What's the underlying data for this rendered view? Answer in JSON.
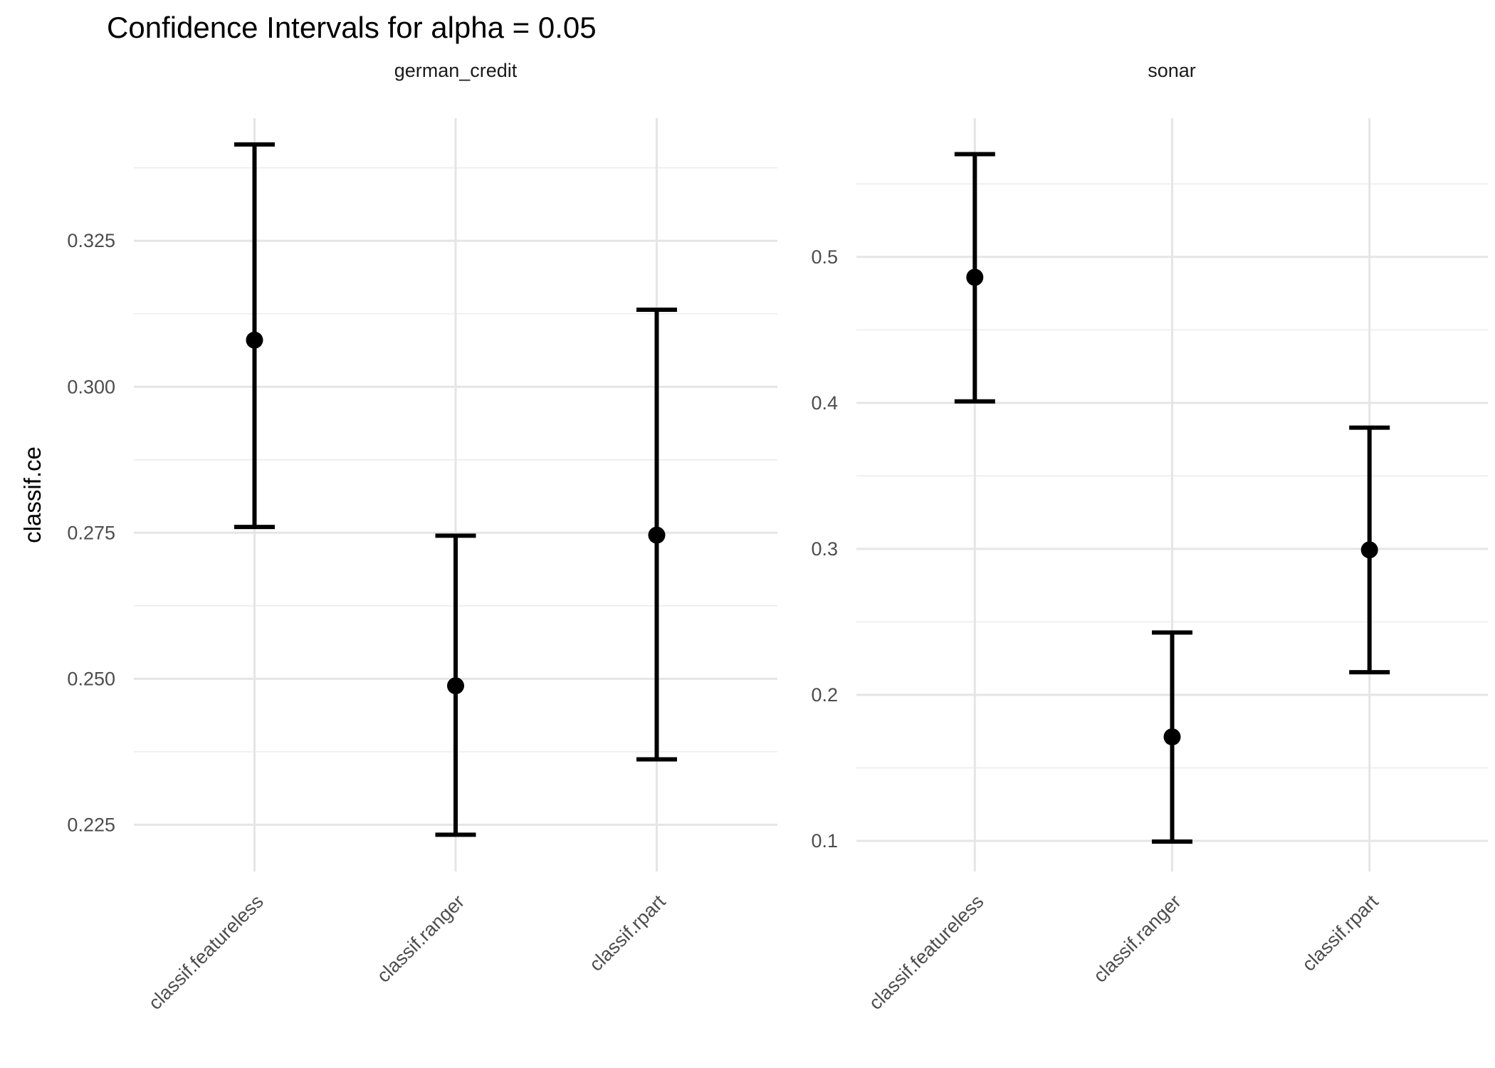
{
  "title": "Confidence Intervals for alpha = 0.05",
  "y_axis_title": "classif.ce",
  "chart_data": {
    "type": "errorbar",
    "title": "Confidence Intervals for alpha = 0.05",
    "ylabel": "classif.ce",
    "xlabel": "",
    "legend": "none",
    "grid": true,
    "categories": [
      "classif.featureless",
      "classif.ranger",
      "classif.rpart"
    ],
    "panels": [
      {
        "facet": "german_credit",
        "ylim": [
          0.217,
          0.346
        ],
        "yticks": [
          0.325,
          0.3,
          0.275,
          0.25,
          0.225
        ],
        "ytick_labels": [
          "0.325",
          "0.300",
          "0.275",
          "0.250",
          "0.225"
        ],
        "minor_gridlines": [
          0.3375,
          0.3125,
          0.2875,
          0.2625,
          0.2375
        ],
        "series": [
          {
            "learner": "classif.featureless",
            "estimate": 0.308,
            "lower": 0.276,
            "upper": 0.3415
          },
          {
            "learner": "classif.ranger",
            "estimate": 0.2488,
            "lower": 0.2233,
            "upper": 0.2745
          },
          {
            "learner": "classif.rpart",
            "estimate": 0.2746,
            "lower": 0.2362,
            "upper": 0.3132
          }
        ]
      },
      {
        "facet": "sonar",
        "ylim": [
          0.079,
          0.595
        ],
        "yticks": [
          0.5,
          0.4,
          0.3,
          0.2,
          0.1
        ],
        "ytick_labels": [
          "0.5",
          "0.4",
          "0.3",
          "0.2",
          "0.1"
        ],
        "minor_gridlines": [
          0.55,
          0.45,
          0.35,
          0.25,
          0.15
        ],
        "series": [
          {
            "learner": "classif.featureless",
            "estimate": 0.486,
            "lower": 0.401,
            "upper": 0.5704
          },
          {
            "learner": "classif.ranger",
            "estimate": 0.1712,
            "lower": 0.0995,
            "upper": 0.2427
          },
          {
            "learner": "classif.rpart",
            "estimate": 0.2993,
            "lower": 0.2155,
            "upper": 0.383
          }
        ]
      }
    ],
    "style": {
      "point_color": "#000000",
      "errorbar_color": "#000000",
      "grid_major_color": "#E5E5E5",
      "grid_minor_color": "#ECECEC",
      "axis_text_color": "#4D4D4D",
      "strip_text_color": "#1A1A1A",
      "title_color": "#000000",
      "background": "#FFFFFF"
    }
  }
}
